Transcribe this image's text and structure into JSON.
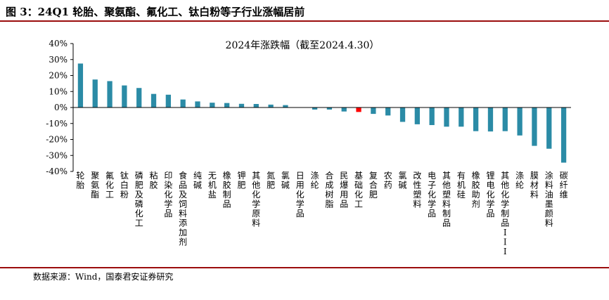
{
  "figure": {
    "title": "图 3：24Q1 轮胎、聚氨酯、氟化工、钛白粉等子行业涨幅居前",
    "source": "数据来源：Wind，国泰君安证券研究"
  },
  "colors": {
    "bar": "#2b8ba6",
    "highlight": "#ff0000",
    "rule": "#9b0d0d",
    "axis": "#000000"
  },
  "chart_data": {
    "type": "bar",
    "title": "2024年涨跌幅（截至2024.4.30）",
    "xlabel": "",
    "ylabel": "",
    "ylim": [
      -40,
      40
    ],
    "yticks": [
      -40,
      -30,
      -20,
      -10,
      0,
      10,
      20,
      30,
      40
    ],
    "ytick_labels": [
      "-40%",
      "-30%",
      "-20%",
      "-10%",
      "0%",
      "10%",
      "20%",
      "30%",
      "40%"
    ],
    "grid": false,
    "legend": "none",
    "highlight_category": "基础化工",
    "categories": [
      "轮胎",
      "聚氨酯",
      "氟化工",
      "钛白粉",
      "磷肥及磷化工",
      "粘胶",
      "印染化学品",
      "食品及饲料添加剂",
      "纯碱",
      "无机盐",
      "橡胶制品",
      "钾肥",
      "其他化学原料",
      "氮肥",
      "氯碱",
      "日用化学品",
      "涤纶",
      "合成树脂",
      "民爆用品",
      "基础化工",
      "复合肥",
      "农药",
      "氯碱",
      "改性塑料",
      "电子化学品",
      "其他塑料制品",
      "有机硅",
      "橡胶助剂",
      "锂电化学品",
      "其他化学制品III",
      "涤纶",
      "膜材料",
      "涂料油墨颜料",
      "碳纤维"
    ],
    "values": [
      27.5,
      17.5,
      16.5,
      13.8,
      12.2,
      8.5,
      8.0,
      5.0,
      3.8,
      3.0,
      2.8,
      2.3,
      2.2,
      1.8,
      1.5,
      0.2,
      -1.3,
      -1.3,
      -2.5,
      -2.8,
      -4.0,
      -5.0,
      -9.0,
      -10.5,
      -11.0,
      -12.0,
      -12.0,
      -14.8,
      -15.0,
      -14.8,
      -17.5,
      -24.0,
      -25.8,
      -34.5
    ]
  }
}
